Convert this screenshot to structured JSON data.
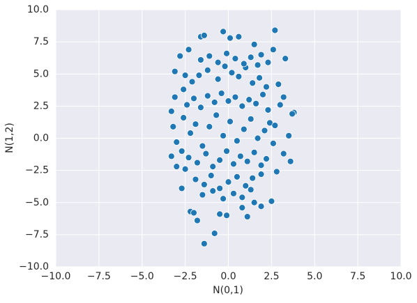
{
  "chart_data": {
    "type": "scatter",
    "x_label": "N(0,1)",
    "y_label": "N(1,2)",
    "xlim": [
      -10,
      10
    ],
    "ylim": [
      -10,
      10
    ],
    "xticks": [
      {
        "value": -10,
        "label": "−10.0"
      },
      {
        "value": -7.5,
        "label": "−7.5"
      },
      {
        "value": -5,
        "label": "−5.0"
      },
      {
        "value": -2.5,
        "label": "−2.5"
      },
      {
        "value": 0,
        "label": "0.0"
      },
      2.5,
      {
        "value": 5,
        "label": "5.0"
      },
      7.5,
      {
        "value": 10,
        "label": "10.0"
      }
    ],
    "yticks": [
      {
        "value": -10,
        "label": "−10.0"
      },
      {
        "value": -7.5,
        "label": "−7.5"
      },
      {
        "value": -5,
        "label": "−5.0"
      },
      {
        "value": -2.5,
        "label": "−2.5"
      },
      {
        "value": 0,
        "label": "0.0"
      },
      2.5,
      {
        "value": 5,
        "label": "5.0"
      },
      7.5,
      {
        "value": 10,
        "label": "10.0"
      }
    ],
    "grid": true,
    "color": "#1f77b4",
    "x": [
      -3.3,
      -1.4,
      -0.8,
      -1.8,
      -2.2,
      -2.0,
      2.7,
      3.3,
      3.8,
      3.7,
      3.6,
      3.5,
      -0.3,
      -1.6,
      -1.4,
      0.1,
      0.6,
      -3.1,
      -2.3,
      1.5,
      -2.8,
      1.1,
      -0.1,
      -0.5,
      0.8,
      1.9,
      1.5,
      -2.7,
      -3.0,
      -3.2,
      -3.3,
      -3.1,
      3.2,
      3.2,
      2.6,
      2.3,
      1.9,
      -2.5,
      -3.0,
      2.9,
      2.5,
      3.0,
      -2.7,
      -2.2,
      -1.9,
      -1.5,
      -1.1,
      -0.7,
      -0.3,
      0.1,
      0.5,
      0.9,
      1.3,
      1.7,
      2.1,
      2.4,
      -2.4,
      -2.0,
      -1.6,
      -1.2,
      -0.8,
      -0.4,
      0.0,
      0.4,
      0.8,
      1.2,
      1.6,
      2.0,
      2.3,
      -2.3,
      -1.8,
      -1.3,
      -0.9,
      -0.5,
      -0.1,
      0.3,
      0.7,
      1.1,
      1.5,
      1.9,
      2.2,
      -2.1,
      -1.7,
      -1.2,
      -0.6,
      -0.2,
      0.2,
      0.6,
      1.0,
      1.4,
      1.8,
      2.2,
      -1.9,
      -1.4,
      -1.0,
      -0.5,
      0.0,
      0.5,
      1.0,
      1.4,
      1.9,
      -1.6,
      -1.1,
      -0.6,
      -0.1,
      0.4,
      0.9,
      1.3,
      1.7,
      -1.5,
      -0.9,
      -0.3,
      0.3,
      0.8,
      1.3,
      -2.6,
      -2.5,
      2.6,
      2.7,
      -2.6,
      2.8
    ],
    "y": [
      -1.4,
      -8.2,
      -7.4,
      -6.4,
      -5.7,
      -5.8,
      8.4,
      6.2,
      2.0,
      1.9,
      -1.8,
      0.2,
      8.3,
      7.9,
      8.0,
      7.8,
      7.9,
      5.2,
      6.9,
      7.3,
      6.4,
      -6.1,
      -6.0,
      -5.9,
      -5.4,
      -5.3,
      -5.0,
      -3.9,
      -2.2,
      0.9,
      2.1,
      3.2,
      3.2,
      -1.2,
      6.9,
      5.9,
      6.5,
      4.9,
      -0.3,
      4.2,
      -4.9,
      2.6,
      -1.0,
      0.4,
      1.1,
      -0.6,
      0.9,
      1.8,
      0.2,
      1.3,
      -0.2,
      0.7,
      1.5,
      0.0,
      0.6,
      1.2,
      2.6,
      3.1,
      2.4,
      3.3,
      2.8,
      3.5,
      2.9,
      3.2,
      2.5,
      3.0,
      2.7,
      3.4,
      2.2,
      -1.5,
      -1.9,
      -1.2,
      -2.2,
      -1.7,
      -1.0,
      -2.0,
      -1.4,
      -1.8,
      -1.1,
      -2.1,
      -1.6,
      4.4,
      4.9,
      5.3,
      4.6,
      5.6,
      5.1,
      4.8,
      5.5,
      4.3,
      4.7,
      4.0,
      -3.2,
      -3.6,
      -2.9,
      -3.9,
      -3.4,
      -3.0,
      -3.7,
      -3.1,
      -2.8,
      6.1,
      6.4,
      5.9,
      6.6,
      6.2,
      5.8,
      6.3,
      5.7,
      -4.4,
      -4.1,
      -4.7,
      -4.3,
      -4.6,
      -4.0,
      1.6,
      -2.4,
      -0.4,
      1.0,
      3.8,
      -2.6
    ]
  }
}
